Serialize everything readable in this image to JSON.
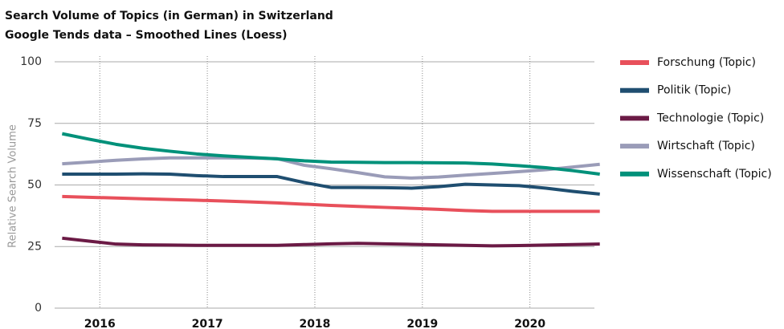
{
  "chart_data": {
    "type": "line",
    "title": "Search Volume of Topics (in German) in Switzerland",
    "subtitle": "Google Tends data – Smoothed Lines (Loess)",
    "y_label": "Relative Search Volume",
    "x": [
      2015.65,
      2015.9,
      2016.15,
      2016.4,
      2016.65,
      2016.9,
      2017.15,
      2017.4,
      2017.65,
      2017.9,
      2018.15,
      2018.4,
      2018.65,
      2018.9,
      2019.15,
      2019.4,
      2019.65,
      2019.9,
      2020.15,
      2020.4,
      2020.65
    ],
    "series": [
      {
        "name": "Forschung (Topic)",
        "color": "#e8505b",
        "values": [
          45.3,
          45.0,
          44.7,
          44.4,
          44.1,
          43.8,
          43.5,
          43.1,
          42.7,
          42.2,
          41.7,
          41.3,
          40.9,
          40.5,
          40.1,
          39.6,
          39.3,
          39.3,
          39.3,
          39.3,
          39.3
        ]
      },
      {
        "name": "Politik (Topic)",
        "color": "#1f4e70",
        "values": [
          54.4,
          54.4,
          54.4,
          54.5,
          54.4,
          53.8,
          53.4,
          53.4,
          53.4,
          51.0,
          49.0,
          49.0,
          48.9,
          48.7,
          49.3,
          50.3,
          50.0,
          49.7,
          48.7,
          47.4,
          46.3
        ]
      },
      {
        "name": "Technologie (Topic)",
        "color": "#6b1a45",
        "values": [
          28.4,
          27.2,
          26.0,
          25.7,
          25.6,
          25.5,
          25.5,
          25.5,
          25.5,
          25.8,
          26.1,
          26.3,
          26.1,
          25.9,
          25.7,
          25.5,
          25.3,
          25.4,
          25.6,
          25.8,
          26.0
        ]
      },
      {
        "name": "Wirtschaft (Topic)",
        "color": "#9a9cb8",
        "values": [
          58.6,
          59.3,
          60.0,
          60.6,
          61.0,
          61.0,
          61.0,
          60.9,
          60.7,
          58.0,
          56.6,
          55.0,
          53.3,
          52.8,
          53.2,
          54.0,
          54.7,
          55.4,
          56.2,
          57.3,
          58.4
        ]
      },
      {
        "name": "Wissenschaft (Topic)",
        "color": "#00917a",
        "values": [
          70.8,
          68.6,
          66.5,
          64.9,
          63.7,
          62.6,
          61.8,
          61.2,
          60.6,
          59.8,
          59.3,
          59.2,
          59.1,
          59.1,
          59.0,
          58.9,
          58.5,
          57.8,
          57.0,
          55.8,
          54.4
        ]
      }
    ],
    "xlim": [
      2015.58,
      2020.6
    ],
    "xticks": [
      2016,
      2017,
      2018,
      2019,
      2020
    ],
    "ylim": [
      0,
      100
    ],
    "yticks": [
      0,
      25,
      50,
      75,
      100
    ],
    "grid": true,
    "legend": "right"
  }
}
